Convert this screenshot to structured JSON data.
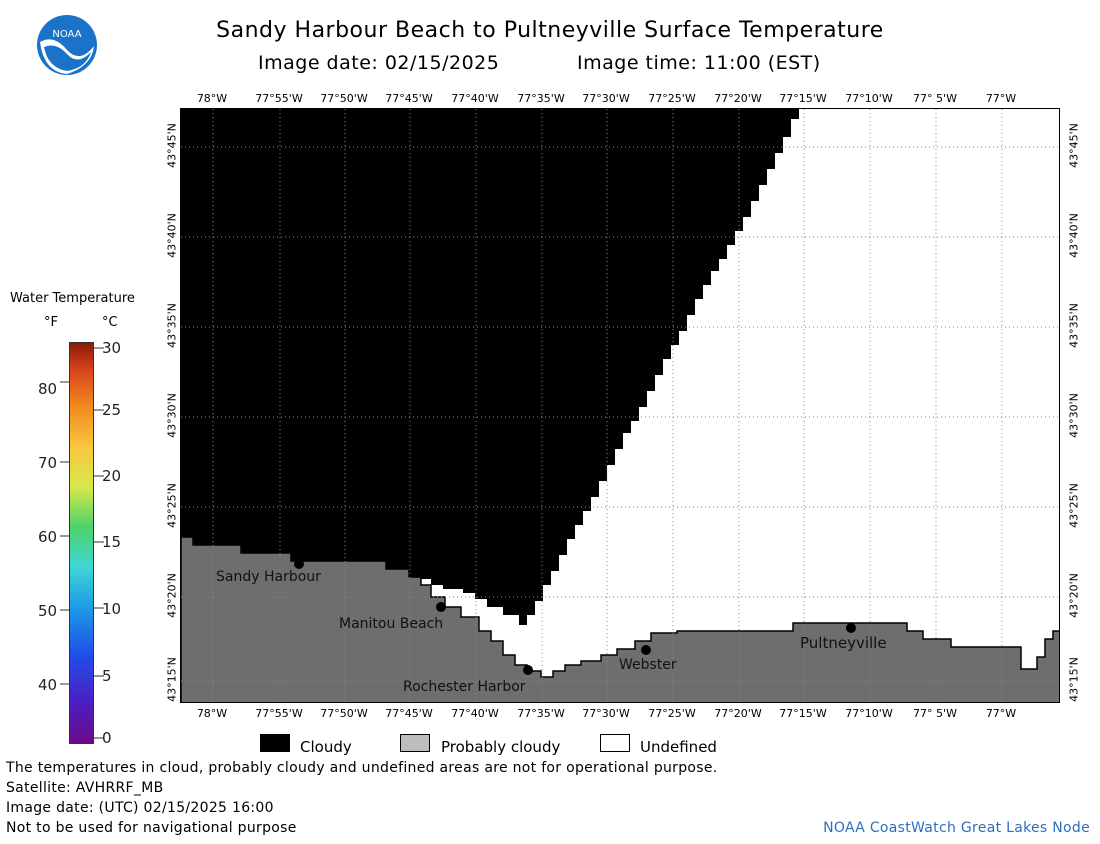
{
  "header": {
    "title": "Sandy Harbour Beach to Pultneyville Surface Temperature",
    "image_date_label": "Image date: 02/15/2025",
    "image_time_label": "Image time: 11:00 (EST)"
  },
  "logo": {
    "text": "NOAA"
  },
  "lon_ticks": [
    "78°W",
    "77°55'W",
    "77°50'W",
    "77°45'W",
    "77°40'W",
    "77°35'W",
    "77°30'W",
    "77°25'W",
    "77°20'W",
    "77°15'W",
    "77°10'W",
    "77° 5'W",
    "77°W"
  ],
  "lat_ticks": [
    "43°45'N",
    "43°40'N",
    "43°35'N",
    "43°30'N",
    "43°25'N",
    "43°20'N",
    "43°15'N"
  ],
  "places": [
    {
      "name": "Sandy Harbour"
    },
    {
      "name": "Manitou Beach"
    },
    {
      "name": "Rochester Harbor"
    },
    {
      "name": "Webster"
    },
    {
      "name": "Pultneyville"
    }
  ],
  "colorbar": {
    "title": "Water Temperature",
    "unit_f": "°F",
    "unit_c": "°C",
    "f_labels": [
      "80",
      "70",
      "60",
      "50",
      "40"
    ],
    "c_labels": [
      "30",
      "25",
      "20",
      "15",
      "10",
      "5",
      "0"
    ]
  },
  "key": {
    "cloudy": "Cloudy",
    "probably_cloudy": "Probably cloudy",
    "undefined": "Undefined",
    "colors": {
      "cloudy": "#000000",
      "probably_cloudy": "#bdbdbd",
      "undefined": "#ffffff",
      "land": "#6e6e6e"
    }
  },
  "footer": {
    "note": "The temperatures in cloud, probably cloudy and undefined areas are not for operational purpose.",
    "satellite": "Satellite: AVHRRF_MB",
    "utc_date": "Image date: (UTC) 02/15/2025  16:00",
    "nav_warning": "Not to be used for navigational purpose",
    "credit": "NOAA CoastWatch Great Lakes Node"
  }
}
